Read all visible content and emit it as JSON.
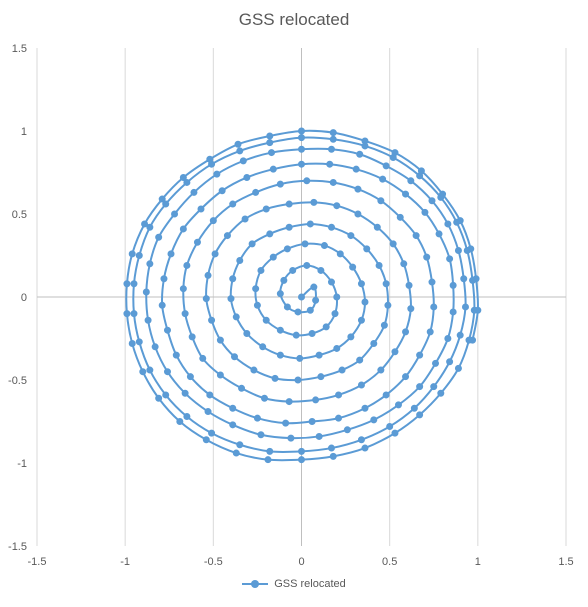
{
  "chart_data": {
    "type": "scatter",
    "title": "GSS relocated",
    "xlabel": "",
    "ylabel": "",
    "xlim": [
      -1.5,
      1.5
    ],
    "ylim": [
      -1.5,
      1.5
    ],
    "x_ticks": [
      -1.5,
      -1,
      -0.5,
      0,
      0.5,
      1,
      1.5
    ],
    "y_ticks": [
      -1.5,
      -1,
      -0.5,
      0,
      0.5,
      1,
      1.5
    ],
    "x_tick_labels": [
      "-1.5",
      "-1",
      "-0.5",
      "0",
      "0.5",
      "1",
      "1.5"
    ],
    "y_tick_labels": [
      "-1.5",
      "-1",
      "-0.5",
      "0",
      "0.5",
      "1",
      "1.5"
    ],
    "grid": "vertical-major",
    "legend": "bottom",
    "series": [
      {
        "name": "GSS relocated",
        "color": "#5b9bd5",
        "line": "smooth",
        "marker": "circle",
        "points": [
          [
            0.0,
            0.0
          ],
          [
            0.07,
            0.06
          ],
          [
            0.08,
            -0.02
          ],
          [
            0.05,
            -0.08
          ],
          [
            -0.02,
            -0.09
          ],
          [
            -0.08,
            -0.06
          ],
          [
            -0.12,
            0.02
          ],
          [
            -0.1,
            0.1
          ],
          [
            -0.05,
            0.16
          ],
          [
            0.03,
            0.19
          ],
          [
            0.11,
            0.16
          ],
          [
            0.17,
            0.09
          ],
          [
            0.2,
            0.0
          ],
          [
            0.19,
            -0.1
          ],
          [
            0.14,
            -0.18
          ],
          [
            0.06,
            -0.22
          ],
          [
            -0.03,
            -0.23
          ],
          [
            -0.12,
            -0.2
          ],
          [
            -0.2,
            -0.14
          ],
          [
            -0.25,
            -0.05
          ],
          [
            -0.26,
            0.05
          ],
          [
            -0.23,
            0.16
          ],
          [
            -0.16,
            0.24
          ],
          [
            -0.08,
            0.29
          ],
          [
            0.02,
            0.32
          ],
          [
            0.13,
            0.31
          ],
          [
            0.22,
            0.26
          ],
          [
            0.29,
            0.18
          ],
          [
            0.34,
            0.08
          ],
          [
            0.36,
            -0.03
          ],
          [
            0.34,
            -0.14
          ],
          [
            0.28,
            -0.24
          ],
          [
            0.2,
            -0.31
          ],
          [
            0.1,
            -0.35
          ],
          [
            -0.01,
            -0.37
          ],
          [
            -0.12,
            -0.35
          ],
          [
            -0.22,
            -0.3
          ],
          [
            -0.31,
            -0.22
          ],
          [
            -0.37,
            -0.12
          ],
          [
            -0.4,
            -0.01
          ],
          [
            -0.39,
            0.11
          ],
          [
            -0.35,
            0.22
          ],
          [
            -0.28,
            0.32
          ],
          [
            -0.18,
            0.38
          ],
          [
            -0.07,
            0.42
          ],
          [
            0.05,
            0.44
          ],
          [
            0.17,
            0.42
          ],
          [
            0.28,
            0.37
          ],
          [
            0.37,
            0.29
          ],
          [
            0.44,
            0.19
          ],
          [
            0.48,
            0.08
          ],
          [
            0.49,
            -0.05
          ],
          [
            0.47,
            -0.17
          ],
          [
            0.41,
            -0.28
          ],
          [
            0.33,
            -0.38
          ],
          [
            0.23,
            -0.44
          ],
          [
            0.11,
            -0.48
          ],
          [
            -0.02,
            -0.5
          ],
          [
            -0.15,
            -0.49
          ],
          [
            -0.27,
            -0.44
          ],
          [
            -0.38,
            -0.36
          ],
          [
            -0.46,
            -0.26
          ],
          [
            -0.51,
            -0.14
          ],
          [
            -0.54,
            -0.01
          ],
          [
            -0.53,
            0.13
          ],
          [
            -0.49,
            0.26
          ],
          [
            -0.42,
            0.37
          ],
          [
            -0.32,
            0.47
          ],
          [
            -0.2,
            0.53
          ],
          [
            -0.07,
            0.56
          ],
          [
            0.07,
            0.57
          ],
          [
            0.2,
            0.55
          ],
          [
            0.32,
            0.5
          ],
          [
            0.43,
            0.42
          ],
          [
            0.52,
            0.32
          ],
          [
            0.58,
            0.2
          ],
          [
            0.61,
            0.07
          ],
          [
            0.62,
            -0.07
          ],
          [
            0.59,
            -0.21
          ],
          [
            0.53,
            -0.33
          ],
          [
            0.45,
            -0.44
          ],
          [
            0.34,
            -0.53
          ],
          [
            0.21,
            -0.59
          ],
          [
            0.08,
            -0.62
          ],
          [
            -0.07,
            -0.63
          ],
          [
            -0.21,
            -0.61
          ],
          [
            -0.34,
            -0.55
          ],
          [
            -0.46,
            -0.47
          ],
          [
            -0.56,
            -0.37
          ],
          [
            -0.62,
            -0.24
          ],
          [
            -0.66,
            -0.1
          ],
          [
            -0.67,
            0.05
          ],
          [
            -0.65,
            0.19
          ],
          [
            -0.59,
            0.33
          ],
          [
            -0.5,
            0.46
          ],
          [
            -0.39,
            0.56
          ],
          [
            -0.26,
            0.63
          ],
          [
            -0.12,
            0.68
          ],
          [
            0.03,
            0.7
          ],
          [
            0.18,
            0.69
          ],
          [
            0.32,
            0.65
          ],
          [
            0.45,
            0.58
          ],
          [
            0.56,
            0.48
          ],
          [
            0.65,
            0.37
          ],
          [
            0.71,
            0.24
          ],
          [
            0.74,
            0.09
          ],
          [
            0.75,
            -0.06
          ],
          [
            0.73,
            -0.21
          ],
          [
            0.67,
            -0.35
          ],
          [
            0.59,
            -0.48
          ],
          [
            0.48,
            -0.59
          ],
          [
            0.36,
            -0.67
          ],
          [
            0.21,
            -0.73
          ],
          [
            0.06,
            -0.75
          ],
          [
            -0.09,
            -0.76
          ],
          [
            -0.25,
            -0.73
          ],
          [
            -0.39,
            -0.67
          ],
          [
            -0.52,
            -0.59
          ],
          [
            -0.63,
            -0.48
          ],
          [
            -0.71,
            -0.35
          ],
          [
            -0.76,
            -0.2
          ],
          [
            -0.79,
            -0.05
          ],
          [
            -0.78,
            0.11
          ],
          [
            -0.74,
            0.26
          ],
          [
            -0.67,
            0.41
          ],
          [
            -0.57,
            0.53
          ],
          [
            -0.45,
            0.64
          ],
          [
            -0.31,
            0.72
          ],
          [
            -0.16,
            0.77
          ],
          [
            0.0,
            0.8
          ],
          [
            0.16,
            0.8
          ],
          [
            0.31,
            0.77
          ],
          [
            0.46,
            0.71
          ],
          [
            0.59,
            0.62
          ],
          [
            0.7,
            0.51
          ],
          [
            0.78,
            0.38
          ],
          [
            0.84,
            0.23
          ],
          [
            0.86,
            0.07
          ],
          [
            0.86,
            -0.09
          ],
          [
            0.83,
            -0.25
          ],
          [
            0.76,
            -0.4
          ],
          [
            0.67,
            -0.54
          ],
          [
            0.55,
            -0.65
          ],
          [
            0.41,
            -0.74
          ],
          [
            0.26,
            -0.8
          ],
          [
            0.1,
            -0.84
          ],
          [
            -0.06,
            -0.85
          ],
          [
            -0.23,
            -0.83
          ],
          [
            -0.39,
            -0.77
          ],
          [
            -0.53,
            -0.69
          ],
          [
            -0.66,
            -0.58
          ],
          [
            -0.76,
            -0.45
          ],
          [
            -0.83,
            -0.3
          ],
          [
            -0.87,
            -0.14
          ],
          [
            -0.88,
            0.03
          ],
          [
            -0.86,
            0.2
          ],
          [
            -0.81,
            0.36
          ],
          [
            -0.72,
            0.5
          ],
          [
            -0.61,
            0.63
          ],
          [
            -0.48,
            0.74
          ],
          [
            -0.33,
            0.82
          ],
          [
            -0.17,
            0.87
          ],
          [
            0.0,
            0.89
          ],
          [
            0.17,
            0.89
          ],
          [
            0.33,
            0.86
          ],
          [
            0.48,
            0.79
          ],
          [
            0.62,
            0.7
          ],
          [
            0.74,
            0.58
          ],
          [
            0.83,
            0.44
          ],
          [
            0.89,
            0.28
          ],
          [
            0.92,
            0.11
          ],
          [
            0.93,
            -0.06
          ],
          [
            0.9,
            -0.23
          ],
          [
            0.84,
            -0.39
          ],
          [
            0.75,
            -0.54
          ],
          [
            0.64,
            -0.67
          ],
          [
            0.5,
            -0.78
          ],
          [
            0.34,
            -0.86
          ],
          [
            0.17,
            -0.91
          ],
          [
            0.0,
            -0.93
          ],
          [
            -0.18,
            -0.93
          ],
          [
            -0.35,
            -0.89
          ],
          [
            -0.51,
            -0.82
          ],
          [
            -0.65,
            -0.72
          ],
          [
            -0.77,
            -0.59
          ],
          [
            -0.86,
            -0.44
          ],
          [
            -0.92,
            -0.27
          ],
          [
            -0.95,
            -0.1
          ],
          [
            -0.95,
            0.08
          ],
          [
            -0.92,
            0.25
          ],
          [
            -0.86,
            0.42
          ],
          [
            -0.77,
            0.56
          ],
          [
            -0.65,
            0.69
          ],
          [
            -0.51,
            0.8
          ],
          [
            -0.35,
            0.88
          ],
          [
            -0.18,
            0.93
          ],
          [
            0.0,
            0.96
          ],
          [
            0.18,
            0.95
          ],
          [
            0.36,
            0.91
          ],
          [
            0.52,
            0.84
          ],
          [
            0.67,
            0.73
          ],
          [
            0.79,
            0.6
          ],
          [
            0.88,
            0.45
          ],
          [
            0.94,
            0.28
          ],
          [
            0.97,
            0.1
          ],
          [
            0.98,
            -0.08
          ],
          [
            0.95,
            -0.26
          ],
          [
            0.89,
            -0.43
          ],
          [
            0.79,
            -0.58
          ],
          [
            0.67,
            -0.71
          ],
          [
            0.53,
            -0.82
          ],
          [
            0.36,
            -0.91
          ],
          [
            0.18,
            -0.96
          ],
          [
            0.0,
            -0.98
          ],
          [
            -0.19,
            -0.98
          ],
          [
            -0.37,
            -0.94
          ],
          [
            -0.54,
            -0.86
          ],
          [
            -0.69,
            -0.75
          ],
          [
            -0.81,
            -0.61
          ],
          [
            -0.9,
            -0.45
          ],
          [
            -0.96,
            -0.28
          ],
          [
            -0.99,
            -0.1
          ],
          [
            -0.99,
            0.08
          ],
          [
            -0.96,
            0.26
          ],
          [
            -0.89,
            0.44
          ],
          [
            -0.79,
            0.59
          ],
          [
            -0.67,
            0.72
          ],
          [
            -0.52,
            0.83
          ],
          [
            -0.36,
            0.92
          ],
          [
            -0.18,
            0.97
          ],
          [
            0.0,
            1.0
          ],
          [
            0.18,
            0.99
          ],
          [
            0.36,
            0.94
          ],
          [
            0.53,
            0.87
          ],
          [
            0.68,
            0.76
          ],
          [
            0.8,
            0.62
          ],
          [
            0.9,
            0.46
          ],
          [
            0.96,
            0.29
          ],
          [
            0.99,
            0.11
          ],
          [
            1.0,
            -0.08
          ],
          [
            0.97,
            -0.26
          ]
        ]
      }
    ]
  },
  "legend": {
    "label": "GSS relocated"
  }
}
